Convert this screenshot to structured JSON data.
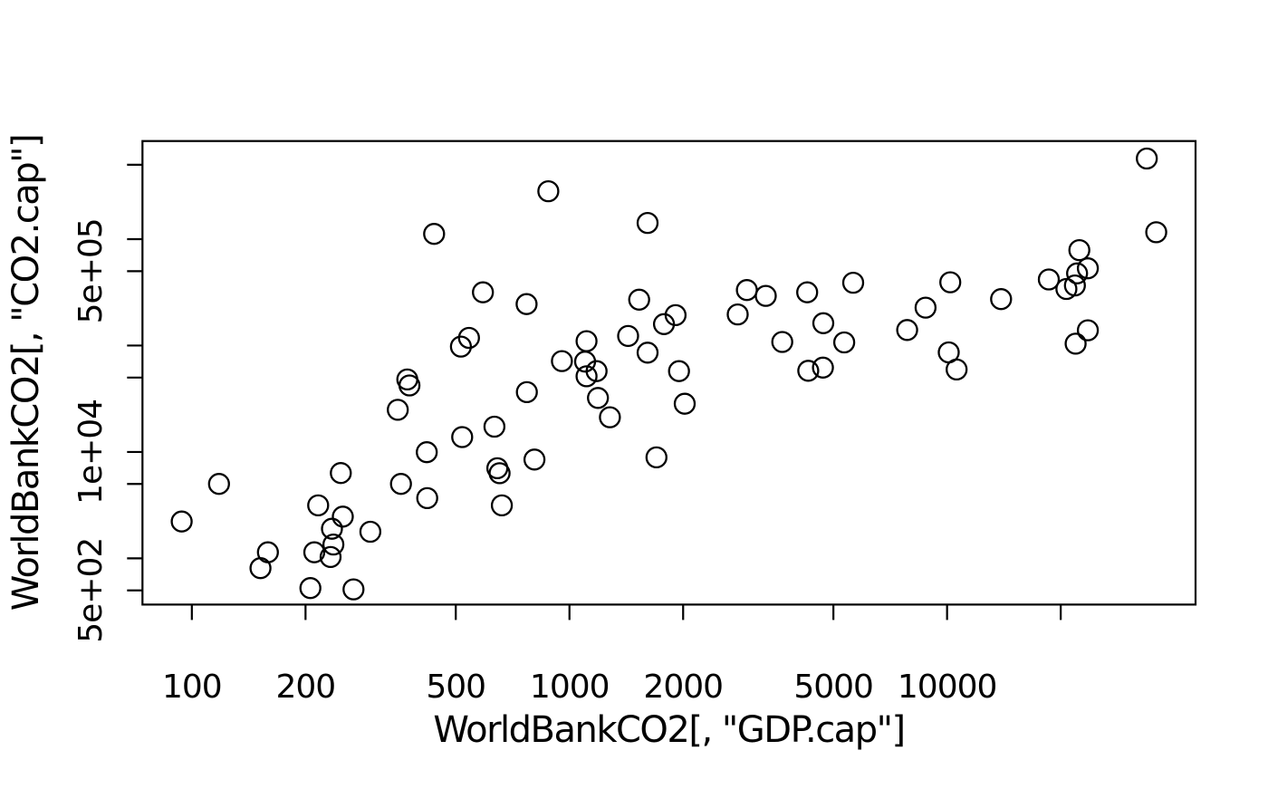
{
  "figure": {
    "background": "#ffffff",
    "axis_color": "#000000",
    "plot_type_note": "R base graphics scatterplot, open circle markers (pch=1), log-log axes"
  },
  "chart_data": {
    "type": "scatter",
    "title": "",
    "xlabel": "WorldBankCO2[, \"GDP.cap\"]",
    "ylabel": "WorldBankCO2[, \"CO2.cap\"]",
    "x_scale": "log",
    "y_scale": "log",
    "xlim": [
      74,
      45500
    ],
    "ylim": [
      368,
      8350000
    ],
    "grid": false,
    "legend": null,
    "marker": {
      "shape": "open-circle",
      "radius_px": 11,
      "color": "#000000"
    },
    "x_ticks": [
      {
        "value": 100,
        "label": "100"
      },
      {
        "value": 200,
        "label": "200"
      },
      {
        "value": 500,
        "label": "500"
      },
      {
        "value": 1000,
        "label": "1000"
      },
      {
        "value": 2000,
        "label": "2000"
      },
      {
        "value": 5000,
        "label": "5000"
      },
      {
        "value": 10000,
        "label": "10000"
      },
      {
        "value": 20000,
        "label": ""
      }
    ],
    "y_ticks": [
      {
        "value": 500,
        "label": "5e+02"
      },
      {
        "value": 1000,
        "label": ""
      },
      {
        "value": 5000,
        "label": ""
      },
      {
        "value": 10000,
        "label": "1e+04"
      },
      {
        "value": 50000,
        "label": ""
      },
      {
        "value": 100000,
        "label": ""
      },
      {
        "value": 500000,
        "label": "5e+05"
      },
      {
        "value": 1000000,
        "label": ""
      },
      {
        "value": 5000000,
        "label": ""
      }
    ],
    "points": [
      [
        94,
        2220
      ],
      [
        118,
        5010
      ],
      [
        152,
        809
      ],
      [
        159,
        1140
      ],
      [
        206,
        526
      ],
      [
        211,
        1140
      ],
      [
        216,
        3150
      ],
      [
        233,
        1030
      ],
      [
        235,
        1900
      ],
      [
        237,
        1350
      ],
      [
        248,
        6340
      ],
      [
        251,
        2470
      ],
      [
        268,
        512
      ],
      [
        297,
        1780
      ],
      [
        351,
        24900
      ],
      [
        358,
        5010
      ],
      [
        372,
        48000
      ],
      [
        377,
        42200
      ],
      [
        419,
        9950
      ],
      [
        420,
        3680
      ],
      [
        438,
        1120000
      ],
      [
        516,
        97700
      ],
      [
        520,
        13800
      ],
      [
        542,
        118000
      ],
      [
        590,
        316000
      ],
      [
        633,
        17300
      ],
      [
        644,
        7030
      ],
      [
        653,
        6310
      ],
      [
        662,
        3150
      ],
      [
        771,
        36500
      ],
      [
        770,
        245000
      ],
      [
        808,
        8490
      ],
      [
        879,
        2820000
      ],
      [
        955,
        71400
      ],
      [
        1100,
        70600
      ],
      [
        1110,
        51400
      ],
      [
        1110,
        110000
      ],
      [
        1180,
        57500
      ],
      [
        1190,
        32200
      ],
      [
        1280,
        21200
      ],
      [
        1430,
        123000
      ],
      [
        1530,
        270000
      ],
      [
        1610,
        1420000
      ],
      [
        1610,
        85700
      ],
      [
        1700,
        8890
      ],
      [
        1780,
        159000
      ],
      [
        1910,
        193000
      ],
      [
        1950,
        57500
      ],
      [
        2020,
        28400
      ],
      [
        2790,
        196000
      ],
      [
        2950,
        332000
      ],
      [
        3310,
        293000
      ],
      [
        3660,
        108000
      ],
      [
        4260,
        316000
      ],
      [
        4290,
        57900
      ],
      [
        4690,
        62000
      ],
      [
        4700,
        162000
      ],
      [
        5340,
        107000
      ],
      [
        5640,
        389000
      ],
      [
        7840,
        140000
      ],
      [
        8770,
        227000
      ],
      [
        10100,
        86300
      ],
      [
        10200,
        393000
      ],
      [
        10600,
        59500
      ],
      [
        13900,
        273000
      ],
      [
        18600,
        418000
      ],
      [
        20700,
        340000
      ],
      [
        21800,
        367000
      ],
      [
        21900,
        104000
      ],
      [
        22100,
        476000
      ],
      [
        22400,
        788000
      ],
      [
        23600,
        532000
      ],
      [
        23600,
        139000
      ],
      [
        33800,
        5720000
      ],
      [
        35800,
        1160000
      ]
    ]
  }
}
